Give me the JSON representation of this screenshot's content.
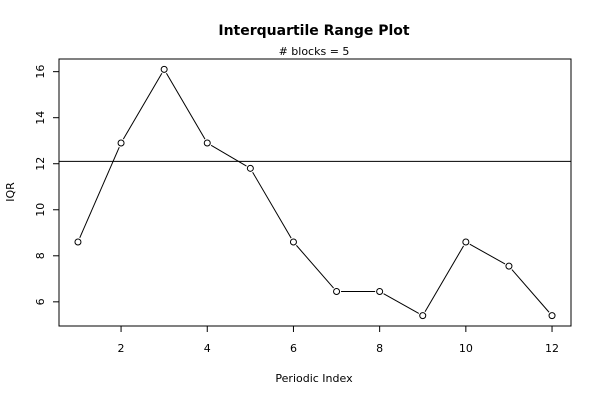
{
  "chart_data": {
    "type": "line",
    "title": "Interquartile Range Plot",
    "subtitle": "# blocks =  5",
    "xlabel": "Periodic Index",
    "ylabel": "IQR",
    "x": [
      1,
      2,
      3,
      4,
      5,
      6,
      7,
      8,
      9,
      10,
      11,
      12
    ],
    "y": [
      8.6,
      12.9,
      16.1,
      12.9,
      11.8,
      8.6,
      6.45,
      6.45,
      5.4,
      8.6,
      7.55,
      5.4
    ],
    "xlim": [
      0.56,
      12.44
    ],
    "ylim": [
      4.95,
      16.55
    ],
    "xticks": [
      2,
      4,
      6,
      8,
      10,
      12
    ],
    "yticks": [
      6,
      8,
      10,
      12,
      14,
      16
    ],
    "reference_line_y": 12.1,
    "grid": false,
    "marker": "open-circle"
  }
}
